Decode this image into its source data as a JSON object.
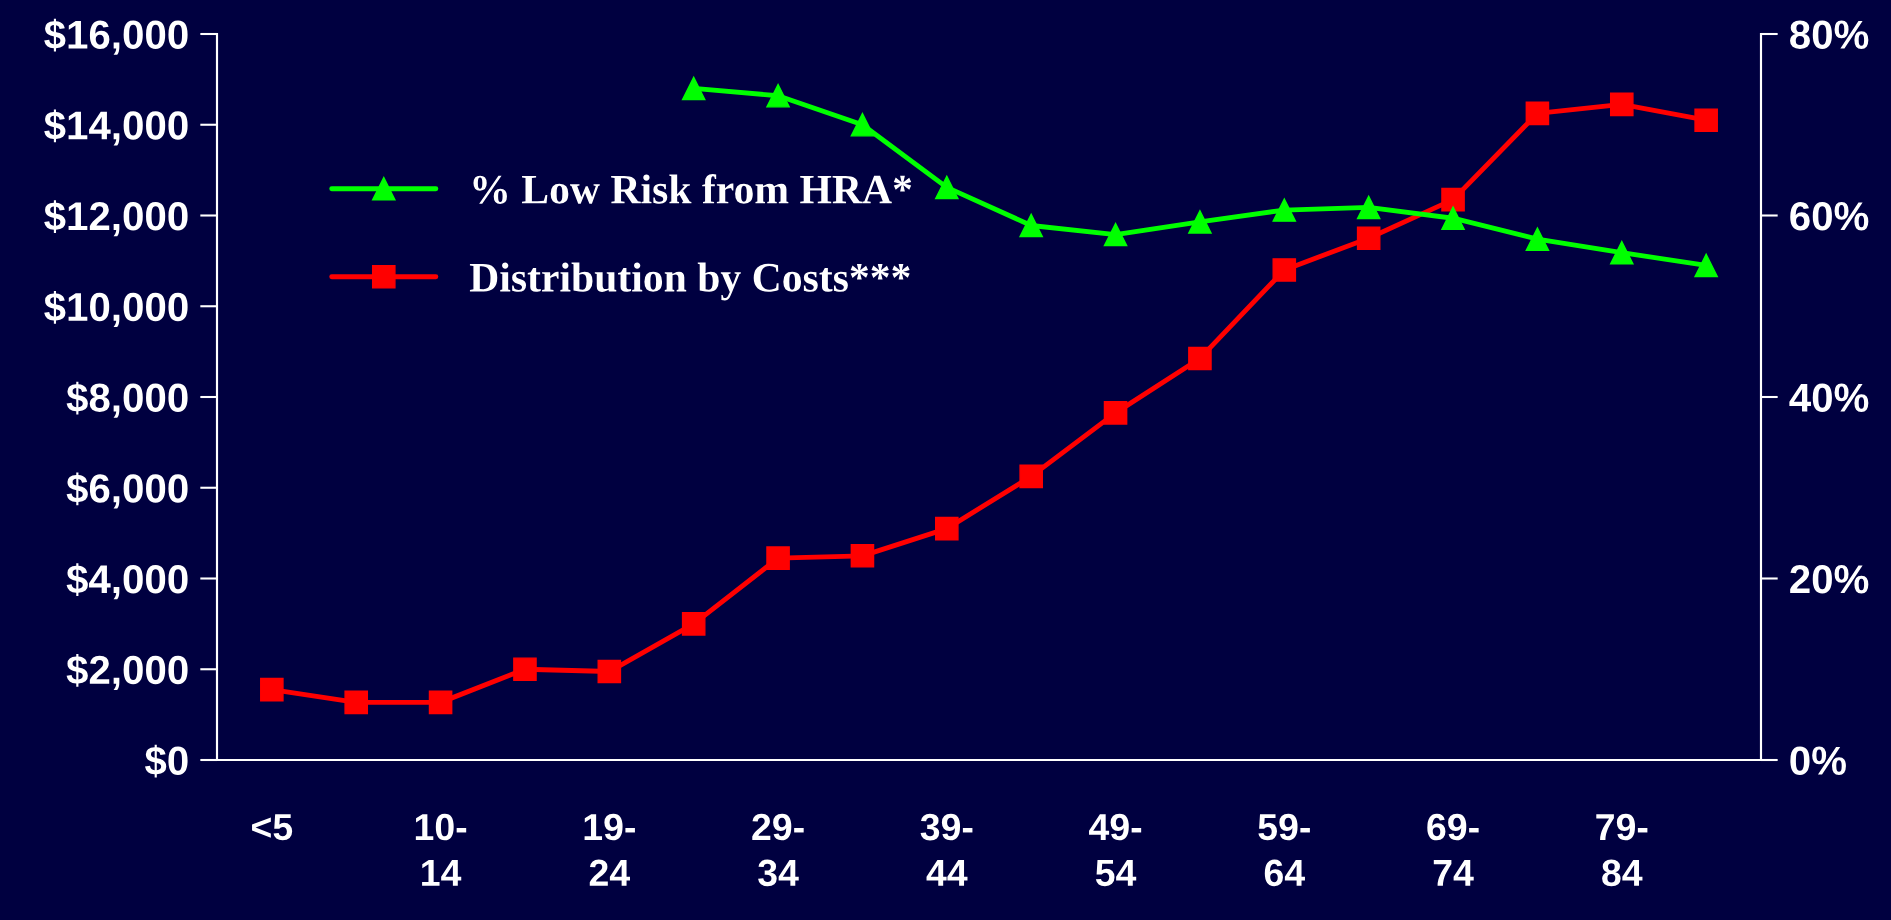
{
  "chart_data": {
    "type": "line",
    "categories": [
      "<5",
      null,
      "10-\n14",
      null,
      "19-\n24",
      null,
      "29-\n34",
      null,
      "39-\n44",
      null,
      "49-\n54",
      null,
      "59-\n64",
      null,
      "69-\n74",
      null,
      "79-\n84",
      null
    ],
    "series": [
      {
        "name": "% Low Risk from HRA*",
        "color": "#00ff00",
        "marker": "triangle",
        "axis": "y2",
        "values": [
          null,
          null,
          null,
          null,
          null,
          74,
          73.2,
          70,
          63.1,
          58.9,
          57.9,
          59.3,
          60.6,
          60.9,
          59.7,
          57.4,
          55.9,
          54.5
        ]
      },
      {
        "name": "Distribution by Costs***",
        "color": "#ff0000",
        "marker": "square",
        "values": [
          1550,
          1270,
          1270,
          2000,
          1950,
          3000,
          4450,
          4500,
          5100,
          6250,
          7650,
          8850,
          10800,
          11500,
          12350,
          14250,
          14450,
          14100
        ]
      }
    ],
    "ylim": [
      0,
      16000
    ],
    "yticks": [
      {
        "value": 0,
        "label": "$0"
      },
      {
        "value": 2000,
        "label": "$2,000"
      },
      {
        "value": 4000,
        "label": "$4,000"
      },
      {
        "value": 6000,
        "label": "$6,000"
      },
      {
        "value": 8000,
        "label": "$8,000"
      },
      {
        "value": 10000,
        "label": "$10,000"
      },
      {
        "value": 12000,
        "label": "$12,000"
      },
      {
        "value": 14000,
        "label": "$14,000"
      },
      {
        "value": 16000,
        "label": "$16,000"
      }
    ],
    "y2lim": [
      0,
      80
    ],
    "y2ticks": [
      {
        "value": 0,
        "label": "0%"
      },
      {
        "value": 20,
        "label": "20%"
      },
      {
        "value": 40,
        "label": "40%"
      },
      {
        "value": 60,
        "label": "60%"
      },
      {
        "value": 80,
        "label": "80%"
      }
    ],
    "legend": "left",
    "grid": false,
    "line_style": "solid"
  }
}
